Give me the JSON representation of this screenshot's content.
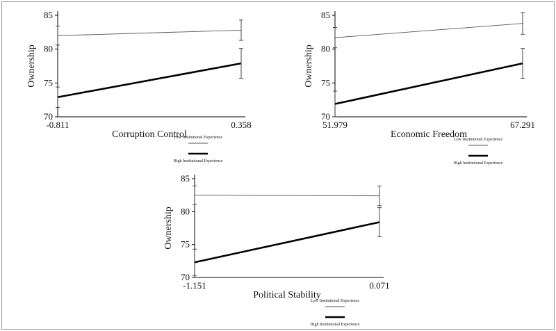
{
  "chart_data": [
    {
      "type": "line",
      "xlabel": "Corruption Control",
      "ylabel": "Ownership",
      "x": [
        -0.811,
        0.358
      ],
      "x_tick_labels": [
        "-0.811",
        "0.358"
      ],
      "ylim": [
        70,
        85
      ],
      "y_ticks": [
        70,
        75,
        80,
        85
      ],
      "series": [
        {
          "name": "Low Institutional Experience",
          "values": [
            82.0,
            82.8
          ],
          "error": [
            1.4,
            1.5
          ],
          "color": "#555555"
        },
        {
          "name": "High Institutional Experience",
          "values": [
            72.9,
            77.9
          ],
          "error": [
            1.5,
            2.2
          ],
          "color": "#000000"
        }
      ]
    },
    {
      "type": "line",
      "xlabel": "Economic Freedom",
      "ylabel": "Ownership",
      "x": [
        51.979,
        67.291
      ],
      "x_tick_labels": [
        "51.979",
        "67.291"
      ],
      "ylim": [
        70,
        85
      ],
      "y_ticks": [
        70,
        75,
        80,
        85
      ],
      "series": [
        {
          "name": "Low Institutional Experience",
          "values": [
            81.7,
            83.8
          ],
          "error": [
            1.5,
            1.6
          ],
          "color": "#555555"
        },
        {
          "name": "High Institutional Experience",
          "values": [
            71.9,
            77.9
          ],
          "error": [
            1.9,
            2.2
          ],
          "color": "#000000"
        }
      ]
    },
    {
      "type": "line",
      "xlabel": "Political Stability",
      "ylabel": "Ownership",
      "x": [
        -1.151,
        0.071
      ],
      "x_tick_labels": [
        "-1.151",
        "0.071"
      ],
      "ylim": [
        70,
        85
      ],
      "y_ticks": [
        70,
        75,
        80,
        85
      ],
      "series": [
        {
          "name": "Low Institutional Experience",
          "values": [
            82.5,
            82.4
          ],
          "error": [
            1.4,
            1.5
          ],
          "color": "#555555"
        },
        {
          "name": "High Institutional Experience",
          "values": [
            72.3,
            78.4
          ],
          "error": [
            2.0,
            2.2
          ],
          "color": "#000000"
        }
      ]
    }
  ],
  "legends": [
    {
      "low": "Low Institutional Experience",
      "high": "High Institutional Experience"
    },
    {
      "low": "Low Institutional Experience",
      "high": "High Institutional Experience"
    },
    {
      "low": "Low Institutional Experience",
      "high": "High Institutional Experience"
    }
  ]
}
